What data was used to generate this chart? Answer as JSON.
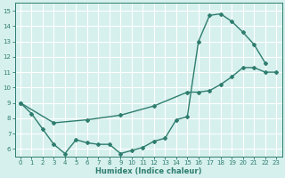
{
  "line1_x": [
    0,
    1,
    2,
    3,
    4,
    5,
    6,
    7,
    8,
    9,
    10,
    11,
    12,
    13,
    14,
    15,
    16,
    17,
    18,
    19,
    20,
    21,
    22
  ],
  "line1_y": [
    9.0,
    8.3,
    7.3,
    6.3,
    5.7,
    6.6,
    6.4,
    6.3,
    6.3,
    5.7,
    5.9,
    6.1,
    6.5,
    6.7,
    7.9,
    8.1,
    13.0,
    14.7,
    14.8,
    14.3,
    13.6,
    12.8,
    11.6
  ],
  "line2_x": [
    0,
    3,
    6,
    9,
    12,
    15,
    16,
    17,
    18,
    19,
    20,
    21,
    22,
    23
  ],
  "line2_y": [
    9.0,
    7.7,
    7.9,
    8.2,
    8.8,
    9.7,
    9.7,
    9.8,
    10.2,
    10.7,
    11.3,
    11.3,
    11.0,
    11.0
  ],
  "color": "#2e7d6e",
  "bg_color": "#d6f0ee",
  "grid_color": "#ffffff",
  "xlabel": "Humidex (Indice chaleur)",
  "xlim": [
    -0.5,
    23.5
  ],
  "ylim": [
    5.5,
    15.5
  ],
  "yticks": [
    6,
    7,
    8,
    9,
    10,
    11,
    12,
    13,
    14,
    15
  ],
  "xticks": [
    0,
    1,
    2,
    3,
    4,
    5,
    6,
    7,
    8,
    9,
    10,
    11,
    12,
    13,
    14,
    15,
    16,
    17,
    18,
    19,
    20,
    21,
    22,
    23
  ],
  "marker": "D",
  "markersize": 2.0,
  "linewidth": 1.0
}
